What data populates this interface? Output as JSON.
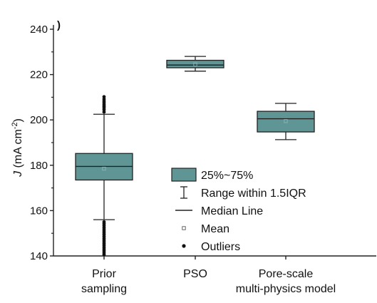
{
  "chart_data": {
    "type": "box",
    "panel_mark": ")",
    "ylabel": "J (mA cm⁻²)",
    "ylabel_parts": {
      "sym": "J",
      "unit": " (mA cm",
      "sup": "-2",
      "close": ")"
    },
    "ylim": [
      140,
      240
    ],
    "yticks": [
      140,
      160,
      180,
      200,
      220,
      240
    ],
    "categories": [
      {
        "lines": [
          "Prior",
          "sampling"
        ]
      },
      {
        "lines": [
          "PSO"
        ]
      },
      {
        "lines": [
          "Pore-scale",
          "multi-physics model"
        ]
      }
    ],
    "boxes": [
      {
        "category": "Prior sampling",
        "q1": 173.5,
        "median": 179.5,
        "q3": 185.2,
        "mean": 178.5,
        "whisker_low": 156,
        "whisker_high": 202.5,
        "outliers_high": [
          203.5,
          204.5,
          205.3,
          206,
          206.7,
          207.5,
          208.3,
          209.2,
          210.2
        ],
        "outliers_low": [
          155,
          154.2,
          153.4,
          152.6,
          151.8,
          151,
          150.2,
          149.4,
          148.6,
          147.8,
          147,
          146.2,
          145.4,
          144.6,
          143.8,
          143,
          142.2,
          141.4,
          140.6
        ]
      },
      {
        "category": "PSO",
        "q1": 223,
        "median": 224.2,
        "q3": 226.3,
        "mean": 224.5,
        "whisker_low": 221.5,
        "whisker_high": 228,
        "outliers_high": [],
        "outliers_low": []
      },
      {
        "category": "Pore-scale multi-physics model",
        "q1": 194.7,
        "median": 200.5,
        "q3": 203.8,
        "mean": 199.5,
        "whisker_low": 191.3,
        "whisker_high": 207.3,
        "outliers_high": [],
        "outliers_low": []
      }
    ],
    "box_color": "#5f9595",
    "line_color": "#222222",
    "legend": {
      "position": "inside-center-right",
      "items": [
        {
          "symbol": "box",
          "label": "25%~75%"
        },
        {
          "symbol": "range",
          "label": "Range within 1.5IQR"
        },
        {
          "symbol": "line",
          "label": "Median Line"
        },
        {
          "symbol": "mean",
          "label": "Mean"
        },
        {
          "symbol": "outlier",
          "label": "Outliers"
        }
      ]
    }
  }
}
